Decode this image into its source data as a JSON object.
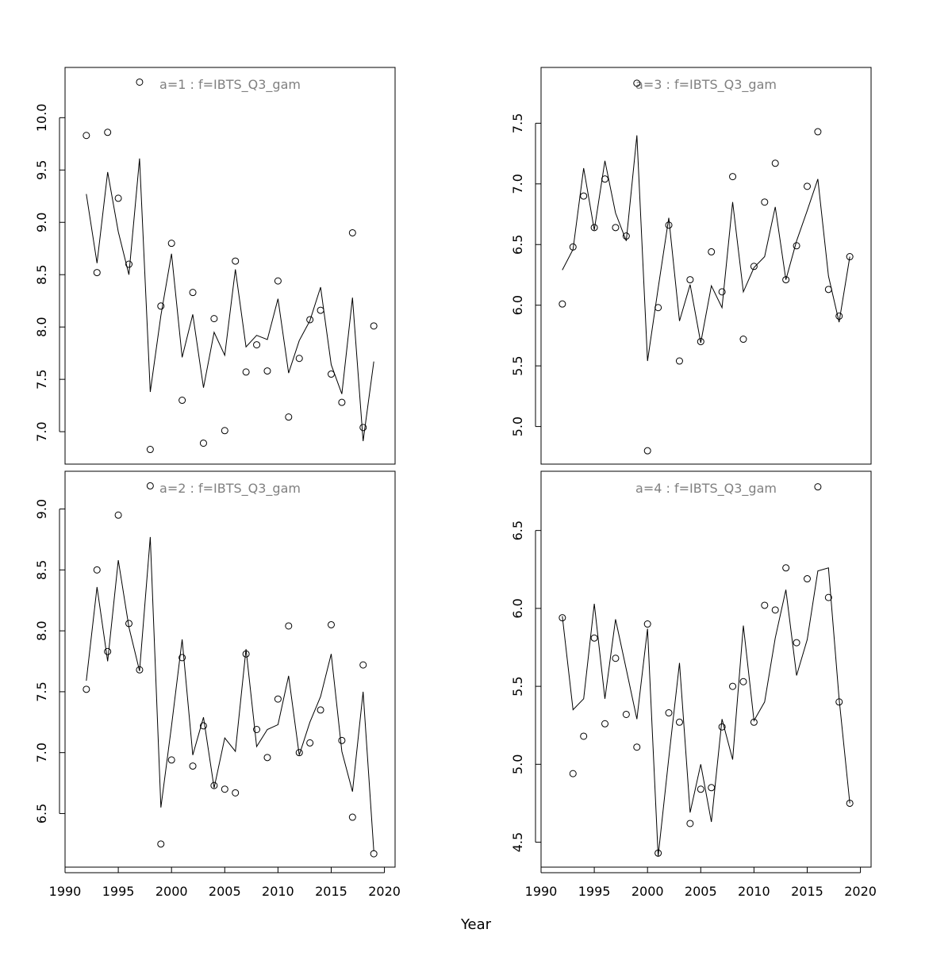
{
  "xlabel": "Year",
  "chart_data": [
    {
      "type": "scatter+line",
      "title": "a=1  :  f=IBTS_Q3_gam",
      "xlim": [
        1990,
        2021
      ],
      "ylim": [
        6.69,
        10.48
      ],
      "xticks": [],
      "yticks": [
        "7.0",
        "7.5",
        "8.0",
        "8.5",
        "9.0",
        "9.5",
        "10.0"
      ],
      "x": [
        1992,
        1993,
        1994,
        1995,
        1996,
        1997,
        1998,
        1999,
        2000,
        2001,
        2002,
        2003,
        2004,
        2005,
        2006,
        2007,
        2008,
        2009,
        2010,
        2011,
        2012,
        2013,
        2014,
        2015,
        2016,
        2017,
        2018,
        2019
      ],
      "points": [
        9.83,
        8.52,
        9.86,
        9.23,
        8.6,
        10.34,
        6.83,
        8.2,
        8.8,
        7.3,
        8.33,
        6.89,
        8.08,
        7.01,
        8.63,
        7.57,
        7.83,
        7.58,
        8.44,
        7.14,
        7.7,
        8.07,
        8.16,
        7.55,
        7.28,
        8.9,
        7.04,
        8.01
      ],
      "line": [
        9.27,
        8.61,
        9.48,
        8.91,
        8.5,
        9.61,
        7.38,
        8.11,
        8.7,
        7.71,
        8.12,
        7.42,
        7.95,
        7.73,
        8.55,
        7.81,
        7.92,
        7.88,
        8.27,
        7.56,
        7.87,
        8.06,
        8.38,
        7.64,
        7.36,
        8.28,
        6.91,
        7.67
      ]
    },
    {
      "type": "scatter+line",
      "title": "a=2  :  f=IBTS_Q3_gam",
      "xlim": [
        1990,
        2021
      ],
      "ylim": [
        6.06,
        9.31
      ],
      "xticks": [
        "1990",
        "1995",
        "2000",
        "2005",
        "2010",
        "2015",
        "2020"
      ],
      "yticks": [
        "6.5",
        "7.0",
        "7.5",
        "8.0",
        "8.5",
        "9.0"
      ],
      "x": [
        1992,
        1993,
        1994,
        1995,
        1996,
        1997,
        1998,
        1999,
        2000,
        2001,
        2002,
        2003,
        2004,
        2005,
        2006,
        2007,
        2008,
        2009,
        2010,
        2011,
        2012,
        2013,
        2014,
        2015,
        2016,
        2017,
        2018,
        2019
      ],
      "points": [
        7.52,
        8.5,
        7.83,
        8.95,
        8.06,
        7.68,
        9.19,
        6.25,
        6.94,
        7.78,
        6.89,
        7.22,
        6.73,
        6.7,
        6.67,
        7.81,
        7.19,
        6.96,
        7.44,
        8.04,
        7.0,
        7.08,
        7.35,
        8.05,
        7.1,
        6.47,
        7.72,
        6.17
      ],
      "line": [
        7.59,
        8.36,
        7.75,
        8.58,
        8.03,
        7.67,
        8.77,
        6.55,
        7.22,
        7.93,
        6.98,
        7.29,
        6.71,
        7.12,
        7.01,
        7.85,
        7.05,
        7.19,
        7.23,
        7.63,
        6.98,
        7.25,
        7.46,
        7.81,
        7.01,
        6.68,
        7.5,
        6.19
      ]
    },
    {
      "type": "scatter+line",
      "title": "a=3  :  f=IBTS_Q3_gam",
      "xlim": [
        1990,
        2021
      ],
      "ylim": [
        4.69,
        7.96
      ],
      "xticks": [],
      "yticks": [
        "5.0",
        "5.5",
        "6.0",
        "6.5",
        "7.0",
        "7.5"
      ],
      "x": [
        1992,
        1993,
        1994,
        1995,
        1996,
        1997,
        1998,
        1999,
        2000,
        2001,
        2002,
        2003,
        2004,
        2005,
        2006,
        2007,
        2008,
        2009,
        2010,
        2011,
        2012,
        2013,
        2014,
        2015,
        2016,
        2017,
        2018,
        2019
      ],
      "points": [
        6.01,
        6.48,
        6.9,
        6.64,
        7.04,
        6.64,
        6.57,
        7.83,
        4.8,
        5.98,
        6.66,
        5.54,
        6.21,
        5.7,
        6.44,
        6.11,
        7.06,
        5.72,
        6.32,
        6.85,
        7.17,
        6.21,
        6.49,
        6.98,
        7.43,
        6.13,
        5.91,
        6.4
      ],
      "line": [
        6.29,
        6.46,
        7.13,
        6.62,
        7.19,
        6.76,
        6.53,
        7.4,
        5.54,
        6.14,
        6.72,
        5.87,
        6.17,
        5.69,
        6.16,
        5.98,
        6.85,
        6.11,
        6.31,
        6.4,
        6.81,
        6.21,
        6.53,
        6.78,
        7.04,
        6.24,
        5.86,
        6.4
      ]
    },
    {
      "type": "scatter+line",
      "title": "a=4  :  f=IBTS_Q3_gam",
      "xlim": [
        1990,
        2021
      ],
      "ylim": [
        4.34,
        6.88
      ],
      "xticks": [
        "1990",
        "1995",
        "2000",
        "2005",
        "2010",
        "2015",
        "2020"
      ],
      "yticks": [
        "4.5",
        "5.0",
        "5.5",
        "6.0",
        "6.5"
      ],
      "x": [
        1992,
        1993,
        1994,
        1995,
        1996,
        1997,
        1998,
        1999,
        2000,
        2001,
        2002,
        2003,
        2004,
        2005,
        2006,
        2007,
        2008,
        2009,
        2010,
        2011,
        2012,
        2013,
        2014,
        2015,
        2016,
        2017,
        2018,
        2019
      ],
      "points": [
        5.94,
        4.94,
        5.18,
        5.81,
        5.26,
        5.68,
        5.32,
        5.11,
        5.9,
        4.43,
        5.33,
        5.27,
        4.62,
        4.84,
        4.85,
        5.24,
        5.5,
        5.53,
        5.27,
        6.02,
        5.99,
        6.26,
        5.78,
        6.19,
        6.78,
        6.07,
        5.4,
        4.75
      ],
      "line": [
        5.95,
        5.35,
        5.42,
        6.03,
        5.42,
        5.93,
        5.61,
        5.29,
        5.87,
        4.41,
        5.04,
        5.65,
        4.69,
        5.0,
        4.63,
        5.29,
        5.03,
        5.89,
        5.28,
        5.4,
        5.81,
        6.12,
        5.57,
        5.8,
        6.24,
        6.26,
        5.42,
        4.75
      ]
    }
  ],
  "colors": {
    "title": "#808080",
    "marks": "#000000"
  }
}
